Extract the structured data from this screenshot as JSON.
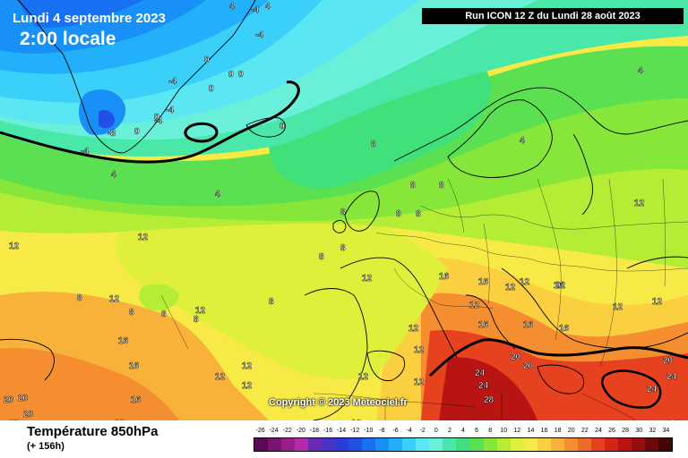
{
  "header": {
    "date": "Lundi 4 septembre 2023",
    "time": "2:00 locale",
    "run": "Run ICON 12 Z du Lundi 28 août 2023"
  },
  "copyright": "Copyright © 2023 Meteociel.fr",
  "footer": {
    "variable": "Température 850hPa",
    "lead": "(+ 156h)"
  },
  "scale": {
    "ticks": [
      "-26",
      "-24",
      "-22",
      "-20",
      "-18",
      "-16",
      "-14",
      "-12",
      "-10",
      "-8",
      "-6",
      "-4",
      "-2",
      "0",
      "2",
      "4",
      "6",
      "8",
      "10",
      "12",
      "14",
      "16",
      "18",
      "20",
      "22",
      "24",
      "26",
      "28",
      "30",
      "32",
      "34"
    ],
    "colors": [
      "#5a0a52",
      "#7a1470",
      "#981e8c",
      "#b42aa8",
      "#6a2ab4",
      "#4a32c8",
      "#2c3cd6",
      "#2050e6",
      "#1870f2",
      "#1890f8",
      "#22b0fa",
      "#3ad0fa",
      "#5ae6f2",
      "#6af0d8",
      "#4ae8a8",
      "#40e07a",
      "#5ae050",
      "#86e63a",
      "#b4ec36",
      "#e0f03a",
      "#f8ea46",
      "#fad040",
      "#f8b23a",
      "#f48e30",
      "#ee6a28",
      "#e64220",
      "#d42418",
      "#b81414",
      "#941010",
      "#6c0a0a",
      "#420606"
    ]
  },
  "map": {
    "isotherm_labels": [
      "-8",
      "-4",
      "0",
      "4",
      "8",
      "12",
      "16",
      "20",
      "24",
      "28"
    ],
    "labels": [
      {
        "v": "-8"
      },
      {
        "v": "-4"
      },
      {
        "v": "-4"
      },
      {
        "v": "-4"
      },
      {
        "v": "-4"
      },
      {
        "v": "-4"
      },
      {
        "v": "-4"
      },
      {
        "v": "0"
      },
      {
        "v": "0"
      },
      {
        "v": "0"
      },
      {
        "v": "0"
      },
      {
        "v": "0"
      },
      {
        "v": "0"
      },
      {
        "v": "0"
      },
      {
        "v": "4"
      },
      {
        "v": "4"
      },
      {
        "v": "4"
      },
      {
        "v": "4"
      },
      {
        "v": "4"
      },
      {
        "v": "4"
      },
      {
        "v": "8"
      },
      {
        "v": "8"
      },
      {
        "v": "8"
      },
      {
        "v": "8"
      },
      {
        "v": "8"
      },
      {
        "v": "8"
      },
      {
        "v": "8"
      },
      {
        "v": "8"
      },
      {
        "v": "8"
      },
      {
        "v": "8"
      },
      {
        "v": "8"
      },
      {
        "v": "8"
      },
      {
        "v": "8"
      },
      {
        "v": "12"
      },
      {
        "v": "12"
      },
      {
        "v": "12"
      },
      {
        "v": "12"
      },
      {
        "v": "12"
      },
      {
        "v": "12"
      },
      {
        "v": "12"
      },
      {
        "v": "12"
      },
      {
        "v": "12"
      },
      {
        "v": "12"
      },
      {
        "v": "12"
      },
      {
        "v": "12"
      },
      {
        "v": "12"
      },
      {
        "v": "12"
      },
      {
        "v": "12"
      },
      {
        "v": "12"
      },
      {
        "v": "12"
      },
      {
        "v": "12"
      },
      {
        "v": "12"
      },
      {
        "v": "16"
      },
      {
        "v": "16"
      },
      {
        "v": "16"
      },
      {
        "v": "16"
      },
      {
        "v": "16"
      },
      {
        "v": "16"
      },
      {
        "v": "16"
      },
      {
        "v": "16"
      },
      {
        "v": "16"
      },
      {
        "v": "16"
      },
      {
        "v": "16"
      },
      {
        "v": "20"
      },
      {
        "v": "20"
      },
      {
        "v": "20"
      },
      {
        "v": "20"
      },
      {
        "v": "20"
      },
      {
        "v": "20"
      },
      {
        "v": "20"
      },
      {
        "v": "24"
      },
      {
        "v": "24"
      },
      {
        "v": "24"
      },
      {
        "v": "24"
      },
      {
        "v": "24"
      },
      {
        "v": "28"
      }
    ]
  }
}
